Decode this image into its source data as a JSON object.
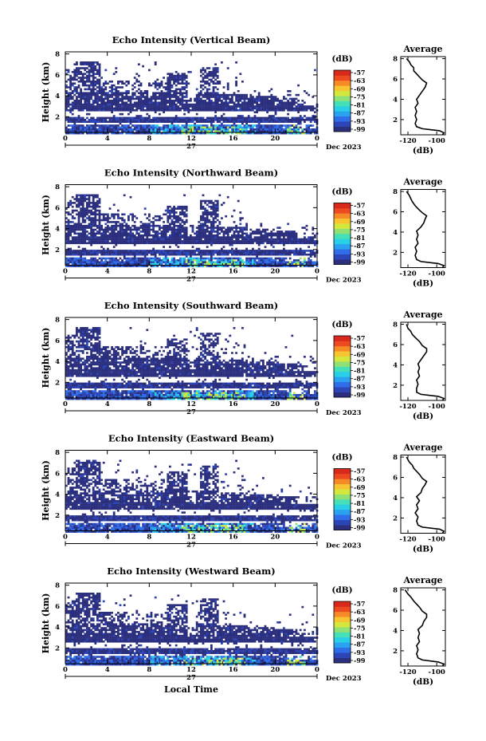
{
  "chart_data": [
    {
      "type": "heatmap",
      "title": "Echo Intensity (Vertical Beam)",
      "ylabel": "Height (km)",
      "x_ticks": [
        "0",
        "4",
        "8",
        "12",
        "16",
        "20",
        "0"
      ],
      "x_range": [
        0,
        24
      ],
      "y_ticks": [
        "8",
        "6",
        "4",
        "2"
      ],
      "y_range": [
        0.5,
        8.2
      ],
      "day_label": "27",
      "month_label": "Dec 2023",
      "colorbar": {
        "unit": "(dB)",
        "ticks": [
          "-57",
          "-63",
          "-69",
          "-75",
          "-81",
          "-87",
          "-93",
          "-99"
        ]
      },
      "average": {
        "title": "Average",
        "xlabel": "(dB)",
        "x_ticks": [
          "-120",
          "-100"
        ],
        "y_ticks": [
          "8",
          "6",
          "4",
          "2"
        ],
        "x_range": [
          -125,
          -94
        ],
        "y_range": [
          0.5,
          8.2
        ],
        "profile": [
          [
            -96,
            0.5
          ],
          [
            -95,
            0.7
          ],
          [
            -98,
            0.9
          ],
          [
            -110,
            1.1
          ],
          [
            -114,
            1.3
          ],
          [
            -115,
            1.6
          ],
          [
            -114,
            2.0
          ],
          [
            -115,
            2.4
          ],
          [
            -114,
            2.8
          ],
          [
            -115,
            3.2
          ],
          [
            -113,
            3.6
          ],
          [
            -114,
            4.0
          ],
          [
            -112,
            4.4
          ],
          [
            -110,
            4.8
          ],
          [
            -108,
            5.2
          ],
          [
            -107,
            5.6
          ],
          [
            -110,
            5.9
          ],
          [
            -112,
            6.2
          ],
          [
            -114,
            6.5
          ],
          [
            -116,
            6.8
          ],
          [
            -116,
            7.1
          ],
          [
            -118,
            7.4
          ],
          [
            -119,
            7.7
          ],
          [
            -121,
            8.0
          ]
        ]
      }
    },
    {
      "type": "heatmap",
      "title": "Echo Intensity (Northward Beam)",
      "ylabel": "Height (km)",
      "x_ticks": [
        "0",
        "4",
        "8",
        "12",
        "16",
        "20",
        "0"
      ],
      "x_range": [
        0,
        24
      ],
      "y_ticks": [
        "8",
        "6",
        "4",
        "2"
      ],
      "y_range": [
        0.5,
        8.2
      ],
      "day_label": "27",
      "month_label": "Dec 2023",
      "colorbar": {
        "unit": "(dB)",
        "ticks": [
          "-57",
          "-63",
          "-69",
          "-75",
          "-81",
          "-87",
          "-93",
          "-99"
        ]
      },
      "average": {
        "title": "Average",
        "xlabel": "(dB)",
        "x_ticks": [
          "-120",
          "-100"
        ],
        "y_ticks": [
          "8",
          "6",
          "4",
          "2"
        ],
        "x_range": [
          -125,
          -94
        ],
        "y_range": [
          0.5,
          8.2
        ],
        "profile": [
          [
            -96,
            0.5
          ],
          [
            -95,
            0.7
          ],
          [
            -99,
            0.9
          ],
          [
            -111,
            1.1
          ],
          [
            -114,
            1.3
          ],
          [
            -115,
            1.7
          ],
          [
            -114,
            2.1
          ],
          [
            -115,
            2.5
          ],
          [
            -113,
            2.9
          ],
          [
            -114,
            3.3
          ],
          [
            -113,
            3.7
          ],
          [
            -114,
            4.1
          ],
          [
            -111,
            4.5
          ],
          [
            -109,
            4.9
          ],
          [
            -108,
            5.3
          ],
          [
            -107,
            5.6
          ],
          [
            -110,
            5.9
          ],
          [
            -113,
            6.3
          ],
          [
            -115,
            6.6
          ],
          [
            -117,
            7.0
          ],
          [
            -118,
            7.3
          ],
          [
            -119,
            7.6
          ],
          [
            -121,
            8.0
          ]
        ]
      }
    },
    {
      "type": "heatmap",
      "title": "Echo Intensity (Southward Beam)",
      "ylabel": "Height (km)",
      "x_ticks": [
        "0",
        "4",
        "8",
        "12",
        "16",
        "20",
        "0"
      ],
      "x_range": [
        0,
        24
      ],
      "y_ticks": [
        "8",
        "6",
        "4",
        "2"
      ],
      "y_range": [
        0.5,
        8.2
      ],
      "day_label": "27",
      "month_label": "Dec 2023",
      "colorbar": {
        "unit": "(dB)",
        "ticks": [
          "-57",
          "-63",
          "-69",
          "-75",
          "-81",
          "-87",
          "-93",
          "-99"
        ]
      },
      "average": {
        "title": "Average",
        "xlabel": "(dB)",
        "x_ticks": [
          "-120",
          "-100"
        ],
        "y_ticks": [
          "8",
          "6",
          "4",
          "2"
        ],
        "x_range": [
          -125,
          -94
        ],
        "y_range": [
          0.5,
          8.2
        ],
        "profile": [
          [
            -96,
            0.5
          ],
          [
            -95,
            0.7
          ],
          [
            -99,
            0.9
          ],
          [
            -111,
            1.1
          ],
          [
            -114,
            1.3
          ],
          [
            -114,
            1.7
          ],
          [
            -113,
            2.1
          ],
          [
            -114,
            2.5
          ],
          [
            -112,
            2.9
          ],
          [
            -113,
            3.3
          ],
          [
            -112,
            3.7
          ],
          [
            -113,
            4.1
          ],
          [
            -111,
            4.5
          ],
          [
            -109,
            4.9
          ],
          [
            -107,
            5.3
          ],
          [
            -107,
            5.6
          ],
          [
            -110,
            5.9
          ],
          [
            -112,
            6.3
          ],
          [
            -115,
            6.7
          ],
          [
            -117,
            7.0
          ],
          [
            -118,
            7.3
          ],
          [
            -120,
            7.6
          ],
          [
            -121,
            8.0
          ]
        ]
      }
    },
    {
      "type": "heatmap",
      "title": "Echo Intensity (Eastward Beam)",
      "ylabel": "Height (km)",
      "x_ticks": [
        "0",
        "4",
        "8",
        "12",
        "16",
        "20",
        "0"
      ],
      "x_range": [
        0,
        24
      ],
      "y_ticks": [
        "8",
        "6",
        "4",
        "2"
      ],
      "y_range": [
        0.5,
        8.2
      ],
      "day_label": "27",
      "month_label": "Dec 2023",
      "colorbar": {
        "unit": "(dB)",
        "ticks": [
          "-57",
          "-63",
          "-69",
          "-75",
          "-81",
          "-87",
          "-93",
          "-99"
        ]
      },
      "average": {
        "title": "Average",
        "xlabel": "(dB)",
        "x_ticks": [
          "-120",
          "-100"
        ],
        "y_ticks": [
          "8",
          "6",
          "4",
          "2"
        ],
        "x_range": [
          -125,
          -94
        ],
        "y_range": [
          0.5,
          8.2
        ],
        "profile": [
          [
            -96,
            0.5
          ],
          [
            -95,
            0.7
          ],
          [
            -98,
            0.9
          ],
          [
            -110,
            1.1
          ],
          [
            -113,
            1.3
          ],
          [
            -114,
            1.7
          ],
          [
            -113,
            2.1
          ],
          [
            -115,
            2.5
          ],
          [
            -113,
            2.9
          ],
          [
            -114,
            3.3
          ],
          [
            -112,
            3.7
          ],
          [
            -114,
            4.1
          ],
          [
            -111,
            4.5
          ],
          [
            -110,
            4.9
          ],
          [
            -108,
            5.3
          ],
          [
            -107,
            5.6
          ],
          [
            -110,
            5.9
          ],
          [
            -112,
            6.3
          ],
          [
            -114,
            6.6
          ],
          [
            -116,
            6.9
          ],
          [
            -117,
            7.2
          ],
          [
            -119,
            7.5
          ],
          [
            -121,
            8.0
          ]
        ]
      }
    },
    {
      "type": "heatmap",
      "title": "Echo Intensity (Westward Beam)",
      "ylabel": "Height (km)",
      "xlabel": "Local Time",
      "x_ticks": [
        "0",
        "4",
        "8",
        "12",
        "16",
        "20",
        "0"
      ],
      "x_range": [
        0,
        24
      ],
      "y_ticks": [
        "8",
        "6",
        "4",
        "2"
      ],
      "y_range": [
        0.5,
        8.2
      ],
      "day_label": "27",
      "month_label": "Dec 2023",
      "colorbar": {
        "unit": "(dB)",
        "ticks": [
          "-57",
          "-63",
          "-69",
          "-75",
          "-81",
          "-87",
          "-93",
          "-99"
        ]
      },
      "average": {
        "title": "Average",
        "xlabel": "(dB)",
        "x_ticks": [
          "-120",
          "-100"
        ],
        "y_ticks": [
          "8",
          "6",
          "4",
          "2"
        ],
        "x_range": [
          -125,
          -94
        ],
        "y_range": [
          0.5,
          8.2
        ],
        "profile": [
          [
            -96,
            0.5
          ],
          [
            -95,
            0.7
          ],
          [
            -99,
            0.9
          ],
          [
            -110,
            1.1
          ],
          [
            -113,
            1.3
          ],
          [
            -114,
            1.7
          ],
          [
            -113,
            2.1
          ],
          [
            -114,
            2.5
          ],
          [
            -112,
            2.9
          ],
          [
            -113,
            3.3
          ],
          [
            -112,
            3.7
          ],
          [
            -113,
            4.1
          ],
          [
            -110,
            4.5
          ],
          [
            -109,
            4.9
          ],
          [
            -107,
            5.3
          ],
          [
            -107,
            5.6
          ],
          [
            -110,
            5.9
          ],
          [
            -112,
            6.3
          ],
          [
            -114,
            6.6
          ],
          [
            -116,
            6.9
          ],
          [
            -118,
            7.3
          ],
          [
            -120,
            7.6
          ],
          [
            -122,
            8.0
          ]
        ]
      }
    }
  ]
}
